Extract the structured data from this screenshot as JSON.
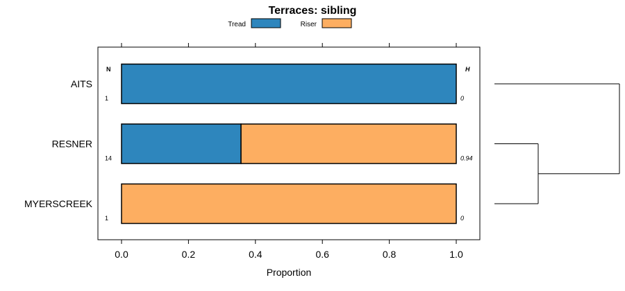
{
  "chart_data": {
    "type": "bar",
    "orientation": "horizontal",
    "stacked": true,
    "title": "Terraces: sibling",
    "xlabel": "Proportion",
    "ylabel": "",
    "xlim": [
      -0.07,
      1.07
    ],
    "x_ticks": [
      0.0,
      0.2,
      0.4,
      0.6,
      0.8,
      1.0
    ],
    "x_tick_labels": [
      "0.0",
      "0.2",
      "0.4",
      "0.6",
      "0.8",
      "1.0"
    ],
    "categories": [
      "AITS",
      "RESNER",
      "MYERSCREEK"
    ],
    "series": [
      {
        "name": "Tread",
        "color": "#2E86BD",
        "values": [
          1.0,
          0.357,
          0.0
        ]
      },
      {
        "name": "Riser",
        "color": "#FDAE61",
        "values": [
          0.0,
          0.643,
          1.0
        ]
      }
    ],
    "n_header": "N",
    "h_header": "H",
    "n_values": [
      "1",
      "14",
      "1"
    ],
    "h_values": [
      "0",
      "0.94",
      "0"
    ],
    "legend_position": "top",
    "dendrogram": {
      "leaves": [
        "AITS",
        "RESNER",
        "MYERSCREEK"
      ],
      "merges": [
        {
          "left": "RESNER",
          "right": "MYERSCREEK",
          "height": 0.35
        },
        {
          "left": "AITS",
          "right": "RESNER+MYERSCREEK",
          "height": 1.0
        }
      ]
    }
  }
}
